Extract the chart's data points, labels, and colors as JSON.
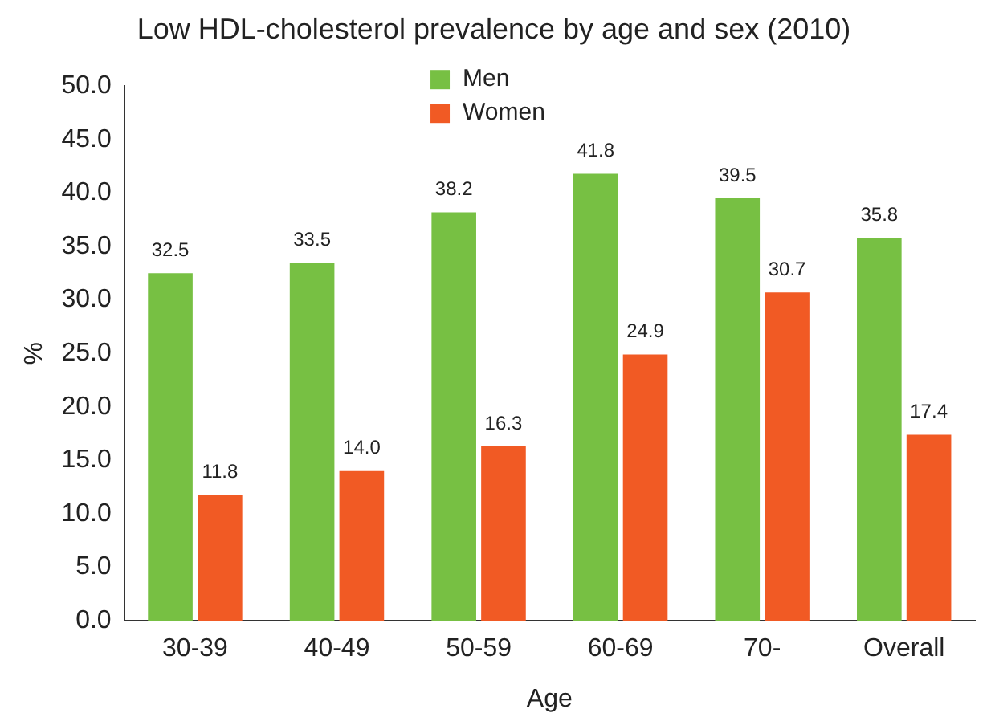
{
  "chart_data": {
    "type": "bar",
    "title": "Low HDL-cholesterol prevalence by age and sex (2010)",
    "xlabel": "Age",
    "ylabel": "%",
    "categories": [
      "30-39",
      "40-49",
      "50-59",
      "60-69",
      "70-",
      "Overall"
    ],
    "series": [
      {
        "name": "Men",
        "color": "#77c043",
        "values": [
          32.5,
          33.5,
          38.2,
          41.8,
          39.5,
          35.8
        ],
        "value_labels": [
          "32.5",
          "33.5",
          "38.2",
          "41.8",
          "39.5",
          "35.8"
        ]
      },
      {
        "name": "Women",
        "color": "#f15a24",
        "values": [
          11.8,
          14.0,
          16.3,
          24.9,
          30.7,
          17.4
        ],
        "value_labels": [
          "11.8",
          "14.0",
          "16.3",
          "24.9",
          "30.7",
          "17.4"
        ]
      }
    ],
    "ylim": [
      0,
      50
    ],
    "yticks": [
      {
        "value": 0,
        "label": "0.0"
      },
      {
        "value": 5,
        "label": "5.0"
      },
      {
        "value": 10,
        "label": "10.0"
      },
      {
        "value": 15,
        "label": "15.0"
      },
      {
        "value": 20,
        "label": "20.0"
      },
      {
        "value": 25,
        "label": "25.0"
      },
      {
        "value": 30,
        "label": "30.0"
      },
      {
        "value": 35,
        "label": "35.0"
      },
      {
        "value": 40,
        "label": "40.0"
      },
      {
        "value": 45,
        "label": "45.0"
      },
      {
        "value": 50,
        "label": "50.0"
      }
    ],
    "grid": false,
    "legend": "top"
  }
}
